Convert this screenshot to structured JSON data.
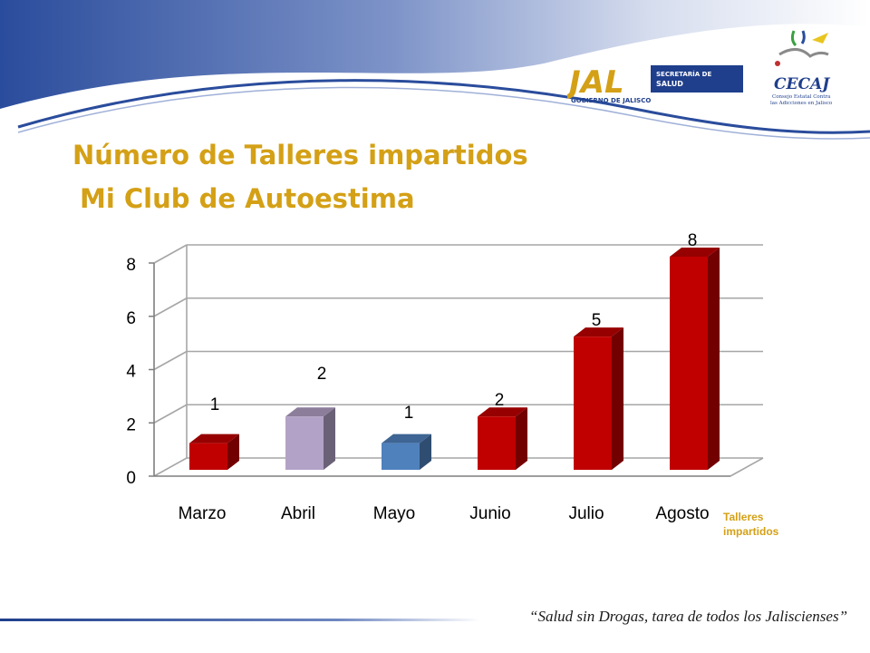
{
  "slide": {
    "title_line1": "Número de Talleres impartidos",
    "title_line2": "Mi Club de Autoestima",
    "footer_slogan": "“Salud sin Drogas, tarea de todos los Jaliscienses”",
    "colors": {
      "title": "#D4A016",
      "header_blue": "#2A4C9C",
      "accent": "#C00000"
    }
  },
  "logos": {
    "jal": {
      "mark": "JAL",
      "sub": "GOBIERNO DE JALISCO",
      "dept_line1": "SECRETARÍA DE",
      "dept_line2": "SALUD"
    },
    "cecaj": {
      "name": "CECAJ",
      "line1": "Consejo Estatal Contra",
      "line2": "las Adicciones en Jalisco"
    }
  },
  "chart_data": {
    "type": "bar",
    "categories": [
      "Marzo",
      "Abril",
      "Mayo",
      "Junio",
      "Julio",
      "Agosto"
    ],
    "series": [
      {
        "name": "Talleres impartidos",
        "values": [
          1,
          2,
          1,
          2,
          5,
          8
        ]
      }
    ],
    "bar_colors": [
      "#C00000",
      "#B3A2C7",
      "#4F81BD",
      "#C00000",
      "#C00000",
      "#C00000"
    ],
    "data_labels": [
      "1",
      "2",
      "1",
      "2",
      "5",
      "8"
    ],
    "ylim": [
      0,
      8
    ],
    "yticks": [
      0,
      2,
      4,
      6,
      8
    ],
    "grid": true,
    "legend": "bottom-right",
    "three_d": true
  }
}
